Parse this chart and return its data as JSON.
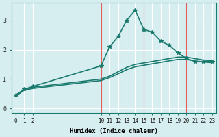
{
  "xlabel": "Humidex (Indice chaleur)",
  "ylabel": "",
  "bg_color": "#d6eef0",
  "line_color": "#1a7a6e",
  "grid_color": "#ffffff",
  "yticks": [
    0,
    1,
    2,
    3
  ],
  "xticks": [
    0,
    1,
    2,
    10,
    11,
    12,
    13,
    14,
    15,
    16,
    17,
    18,
    19,
    20,
    21,
    22,
    23
  ],
  "xlim": [
    -0.5,
    23.5
  ],
  "ylim": [
    -0.15,
    3.6
  ],
  "series": [
    {
      "x": [
        0,
        1,
        2,
        10,
        11,
        12,
        13,
        14,
        15,
        16,
        17,
        18,
        19,
        20,
        21,
        22,
        23
      ],
      "y": [
        0.45,
        0.65,
        0.75,
        1.45,
        2.1,
        2.45,
        3.0,
        3.35,
        2.7,
        2.6,
        2.3,
        2.15,
        1.9,
        1.7,
        1.6,
        1.6,
        1.6
      ],
      "marker": "*",
      "lw": 1.2
    },
    {
      "x": [
        0,
        1,
        2,
        10,
        11,
        12,
        13,
        14,
        15,
        16,
        17,
        18,
        19,
        20,
        21,
        22,
        23
      ],
      "y": [
        0.45,
        0.65,
        0.72,
        1.0,
        1.1,
        1.25,
        1.4,
        1.5,
        1.55,
        1.6,
        1.65,
        1.7,
        1.75,
        1.75,
        1.7,
        1.65,
        1.62
      ],
      "marker": null,
      "lw": 1.2
    },
    {
      "x": [
        0,
        1,
        2,
        10,
        11,
        12,
        13,
        14,
        15,
        16,
        17,
        18,
        19,
        20,
        21,
        22,
        23
      ],
      "y": [
        0.42,
        0.62,
        0.68,
        0.95,
        1.05,
        1.18,
        1.32,
        1.42,
        1.47,
        1.52,
        1.57,
        1.62,
        1.67,
        1.67,
        1.62,
        1.58,
        1.56
      ],
      "marker": null,
      "lw": 1.2
    }
  ],
  "vlines": [
    10,
    15,
    20
  ],
  "vline_color": "#e06060",
  "vline_lw": 0.8
}
